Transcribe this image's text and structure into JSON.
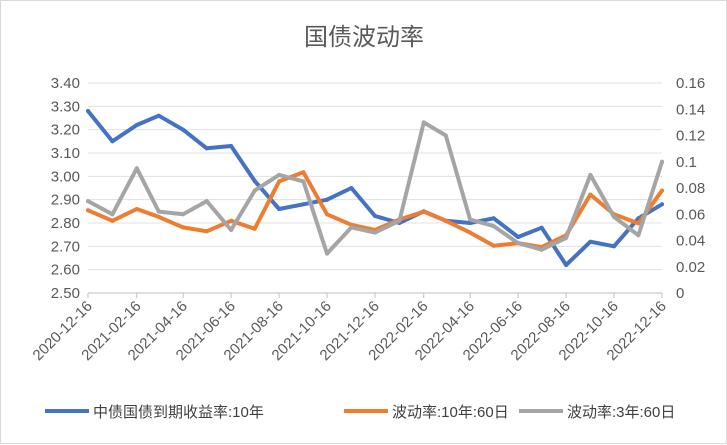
{
  "chart_data": {
    "type": "line",
    "title": "国债波动率",
    "x_tick_labels": [
      "2020-12-16",
      "2021-02-16",
      "2021-04-16",
      "2021-06-16",
      "2021-08-16",
      "2021-10-16",
      "2021-12-16",
      "2022-02-16",
      "2022-04-16",
      "2022-06-16",
      "2022-08-16",
      "2022-10-16",
      "2022-12-16"
    ],
    "left_axis": {
      "ylim": [
        2.5,
        3.4
      ],
      "tick_labels": [
        "2.50",
        "2.60",
        "2.70",
        "2.80",
        "2.90",
        "3.00",
        "3.10",
        "3.20",
        "3.30",
        "3.40"
      ]
    },
    "right_axis": {
      "ylim": [
        0,
        0.16
      ],
      "tick_labels": [
        "0",
        "0.02",
        "0.04",
        "0.06",
        "0.08",
        "0.1",
        "0.12",
        "0.14",
        "0.16"
      ]
    },
    "grid": true,
    "legend_position": "bottom",
    "x": [
      "2020-12-16",
      "2021-01-16",
      "2021-02-16",
      "2021-03-16",
      "2021-04-16",
      "2021-05-16",
      "2021-06-16",
      "2021-07-16",
      "2021-08-16",
      "2021-09-16",
      "2021-10-16",
      "2021-11-16",
      "2021-12-16",
      "2022-01-16",
      "2022-02-16",
      "2022-03-16",
      "2022-04-16",
      "2022-05-16",
      "2022-06-16",
      "2022-07-16",
      "2022-08-16",
      "2022-09-16",
      "2022-10-16",
      "2022-11-16",
      "2022-12-16"
    ],
    "series": [
      {
        "name": "中债国债到期收益率:10年",
        "axis": "left",
        "color": "#4472c4",
        "values": [
          3.28,
          3.15,
          3.22,
          3.26,
          3.2,
          3.12,
          3.13,
          2.98,
          2.86,
          2.88,
          2.9,
          2.95,
          2.83,
          2.8,
          2.85,
          2.81,
          2.8,
          2.82,
          2.74,
          2.78,
          2.62,
          2.72,
          2.7,
          2.82,
          2.88
        ]
      },
      {
        "name": "波动率:10年:60日",
        "axis": "right",
        "color": "#ed7d31",
        "values": [
          0.063,
          0.055,
          0.064,
          0.058,
          0.05,
          0.047,
          0.055,
          0.049,
          0.085,
          0.092,
          0.06,
          0.052,
          0.048,
          0.056,
          0.062,
          0.055,
          0.046,
          0.036,
          0.038,
          0.035,
          0.044,
          0.075,
          0.06,
          0.053,
          0.078
        ]
      },
      {
        "name": "波动率:3年:60日",
        "axis": "right",
        "color": "#a5a5a5",
        "values": [
          0.07,
          0.06,
          0.095,
          0.062,
          0.06,
          0.07,
          0.048,
          0.078,
          0.09,
          0.085,
          0.03,
          0.05,
          0.046,
          0.055,
          0.13,
          0.12,
          0.056,
          0.051,
          0.038,
          0.033,
          0.042,
          0.09,
          0.058,
          0.044,
          0.1
        ]
      }
    ]
  }
}
